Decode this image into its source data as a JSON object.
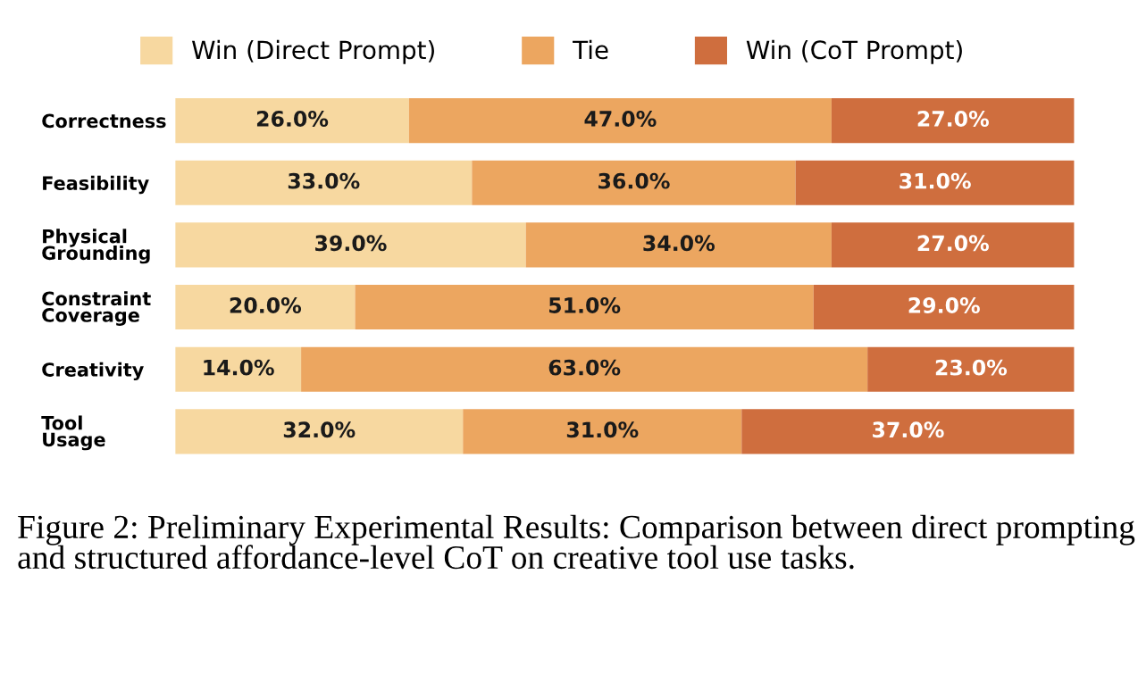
{
  "chart_data": {
    "type": "bar",
    "orientation": "horizontal",
    "stacked": true,
    "tick_labels": "y",
    "grid": false,
    "legend": "top",
    "categories": [
      "Correctness",
      "Feasibility",
      "Physical\nGrounding",
      "Constraint\nCoverage",
      "Creativity",
      "Tool\nUsage"
    ],
    "series": [
      {
        "name": "Win (Direct Prompt)",
        "color": "#f7d8a0",
        "values": [
          26,
          33,
          39,
          20,
          14,
          32
        ],
        "value_labels": [
          "26.0%",
          "33.0%",
          "39.0%",
          "20.0%",
          "14.0%",
          "32.0%"
        ]
      },
      {
        "name": "Tie",
        "color": "#eca660",
        "values": [
          47,
          36,
          34,
          51,
          63,
          31
        ],
        "value_labels": [
          "47.0%",
          "36.0%",
          "34.0%",
          "51.0%",
          "63.0%",
          "31.0%"
        ]
      },
      {
        "name": "Win (CoT Prompt)",
        "color": "#cf6e3e",
        "values": [
          27,
          31,
          27,
          29,
          23,
          37
        ],
        "value_labels": [
          "27.0%",
          "31.0%",
          "27.0%",
          "29.0%",
          "23.0%",
          "37.0%"
        ]
      }
    ],
    "annotations": [
      "Figure 2: Preliminary Experimental Results: Comparison between direct prompting and structured affordance-level CoT on creative tool use tasks."
    ]
  }
}
